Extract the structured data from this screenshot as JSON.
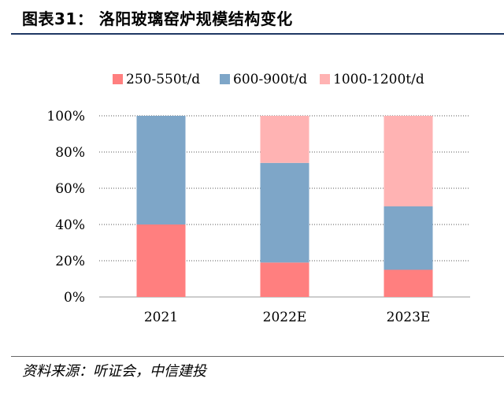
{
  "header": {
    "title": "图表31：   洛阳玻璃窑炉规模结构变化"
  },
  "footer": {
    "source": "资料来源：听证会，中信建投"
  },
  "chart_data": {
    "type": "bar",
    "stacked": true,
    "categories": [
      "2021",
      "2022E",
      "2023E"
    ],
    "series": [
      {
        "name": "250-550t/d",
        "color": "#ff7f7f",
        "values": [
          40,
          19,
          15
        ]
      },
      {
        "name": "600-900t/d",
        "color": "#7ea6c8",
        "values": [
          60,
          55,
          35
        ]
      },
      {
        "name": "1000-1200t/d",
        "color": "#ffb3b3",
        "values": [
          0,
          26,
          50
        ]
      }
    ],
    "ylim": [
      0,
      100
    ],
    "yticks": [
      "0%",
      "20%",
      "40%",
      "60%",
      "80%",
      "100%"
    ],
    "grid": true,
    "legend_position": "top"
  }
}
